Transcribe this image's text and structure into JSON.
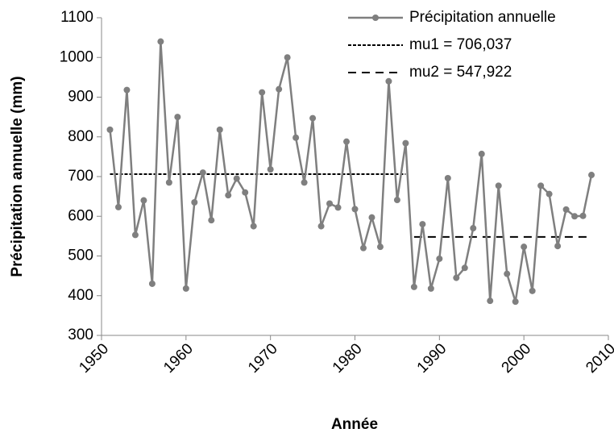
{
  "chart_data": {
    "type": "line",
    "x_label": "Année",
    "y_label": "Précipitation annuelle (mm)",
    "x": [
      1951,
      1952,
      1953,
      1954,
      1955,
      1956,
      1957,
      1958,
      1959,
      1960,
      1961,
      1962,
      1963,
      1964,
      1965,
      1966,
      1967,
      1968,
      1969,
      1970,
      1971,
      1972,
      1973,
      1974,
      1975,
      1976,
      1977,
      1978,
      1979,
      1980,
      1981,
      1982,
      1983,
      1984,
      1985,
      1986,
      1987,
      1988,
      1989,
      1990,
      1991,
      1992,
      1993,
      1994,
      1995,
      1996,
      1997,
      1998,
      1999,
      2000,
      2001,
      2002,
      2003,
      2004,
      2005,
      2006,
      2007,
      2008
    ],
    "series": [
      {
        "name": "Précipitation annuelle",
        "color": "#7f7f7f",
        "values": [
          818,
          623,
          918,
          553,
          640,
          430,
          1040,
          685,
          850,
          418,
          635,
          710,
          590,
          818,
          653,
          695,
          660,
          575,
          912,
          718,
          920,
          1000,
          798,
          685,
          847,
          575,
          632,
          622,
          788,
          618,
          520,
          597,
          523,
          940,
          641,
          784,
          422,
          580,
          418,
          493,
          696,
          445,
          470,
          570,
          757,
          387,
          677,
          455,
          385,
          523,
          412,
          677,
          656,
          525,
          617,
          600,
          601,
          704
        ]
      }
    ],
    "reference_lines": [
      {
        "name": "mu1 = 706,037",
        "value": 706.037,
        "x": [
          1951,
          1986
        ],
        "color": "#000000",
        "dash": "4,2"
      },
      {
        "name": "mu2 = 547,922",
        "value": 547.922,
        "x": [
          1987,
          2008
        ],
        "color": "#000000",
        "dash": "10,7"
      }
    ],
    "xlim": [
      1950,
      2010
    ],
    "xticks": [
      1950,
      1960,
      1970,
      1980,
      1990,
      2000,
      2010
    ],
    "ylim": [
      300,
      1100
    ],
    "yticks": [
      300,
      400,
      500,
      600,
      700,
      800,
      900,
      1000,
      1100
    ],
    "grid": false,
    "legend": "top-right"
  }
}
